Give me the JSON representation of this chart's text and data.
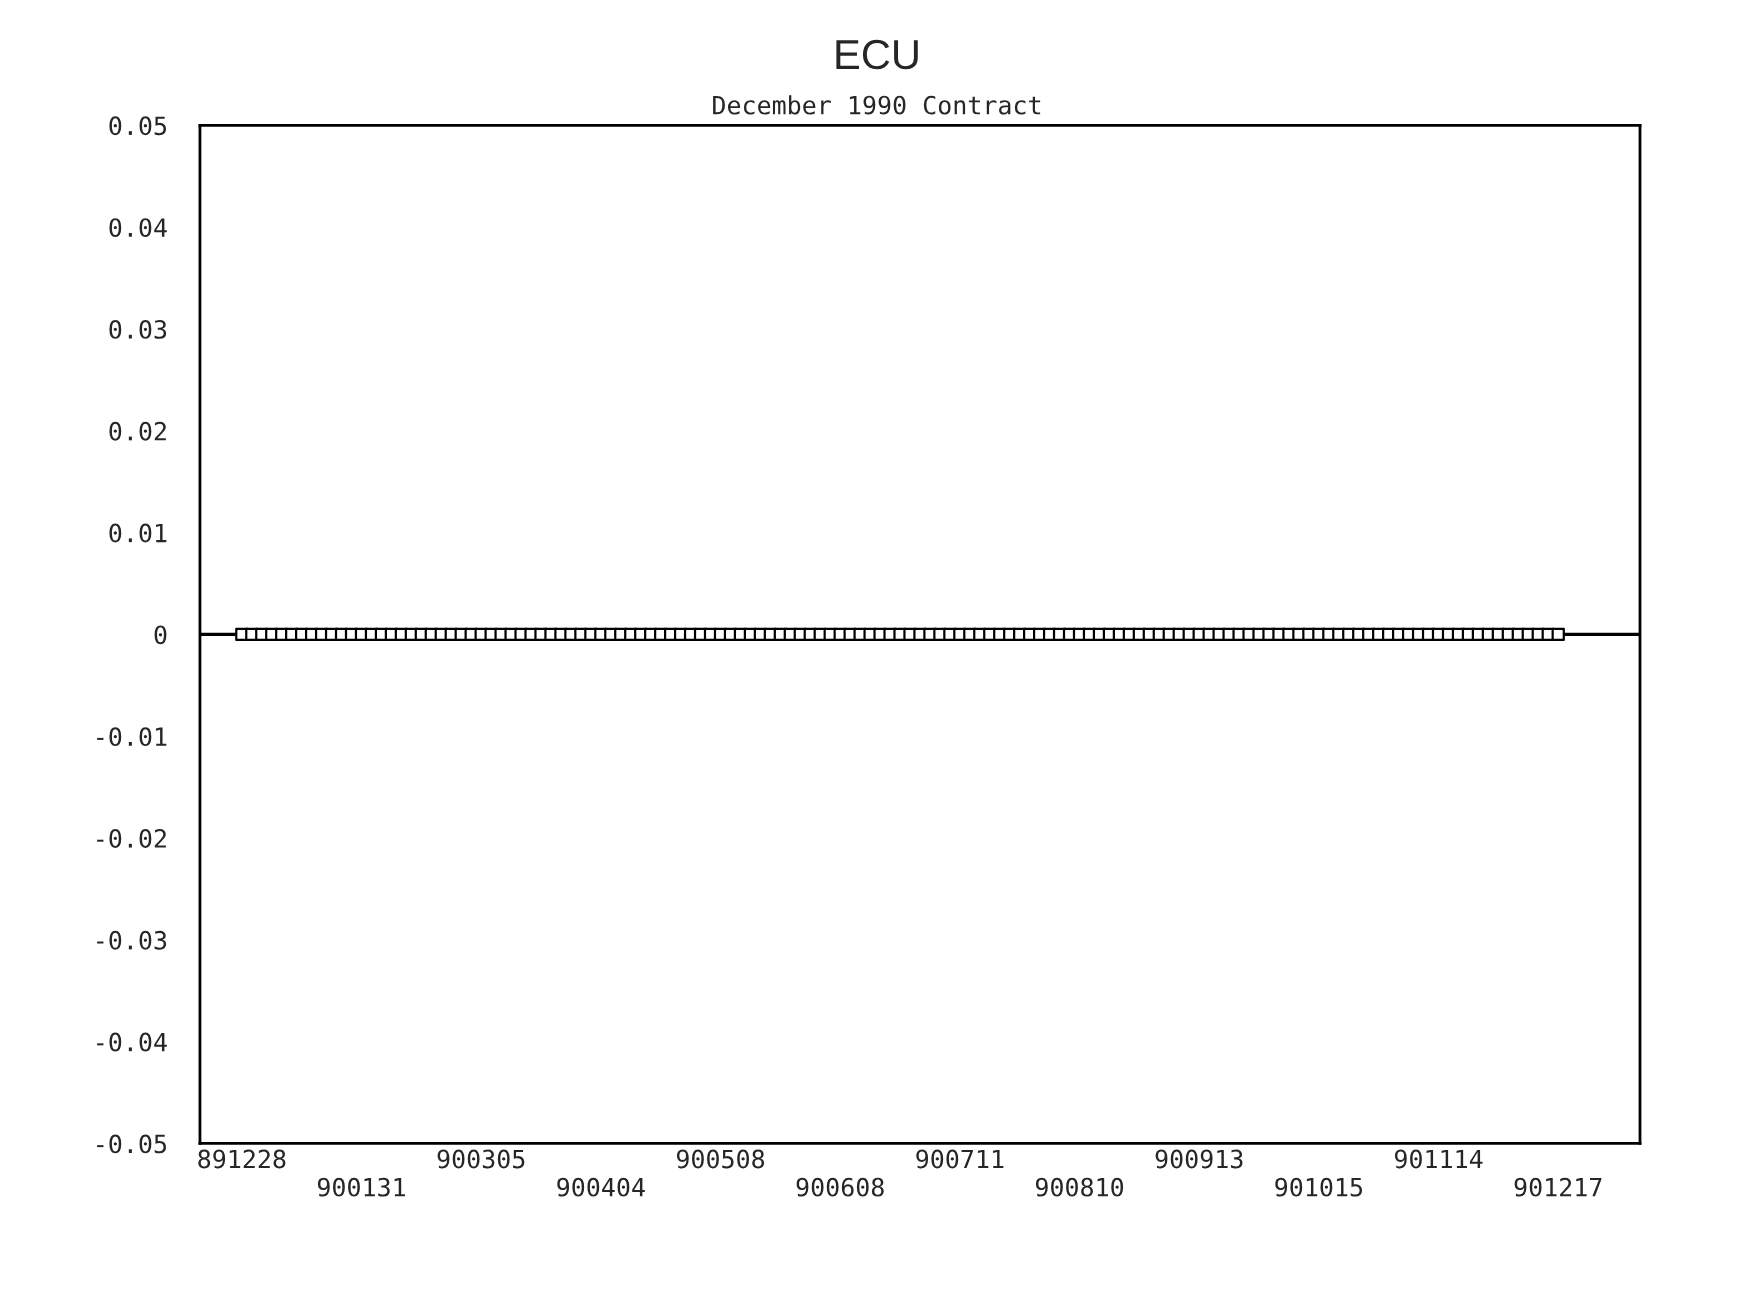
{
  "chart_data": {
    "type": "scatter",
    "title": "ECU",
    "subtitle": "December 1990 Contract",
    "categories": [
      "891228",
      null,
      null,
      null,
      null,
      null,
      null,
      null,
      null,
      null,
      null,
      null,
      "900131",
      null,
      null,
      null,
      null,
      null,
      null,
      null,
      null,
      null,
      null,
      null,
      "900305",
      null,
      null,
      null,
      null,
      null,
      null,
      null,
      null,
      null,
      null,
      null,
      "900404",
      null,
      null,
      null,
      null,
      null,
      null,
      null,
      null,
      null,
      null,
      null,
      "900508",
      null,
      null,
      null,
      null,
      null,
      null,
      null,
      null,
      null,
      null,
      null,
      "900608",
      null,
      null,
      null,
      null,
      null,
      null,
      null,
      null,
      null,
      null,
      null,
      "900711",
      null,
      null,
      null,
      null,
      null,
      null,
      null,
      null,
      null,
      null,
      null,
      "900810",
      null,
      null,
      null,
      null,
      null,
      null,
      null,
      null,
      null,
      null,
      null,
      "900913",
      null,
      null,
      null,
      null,
      null,
      null,
      null,
      null,
      null,
      null,
      null,
      "901015",
      null,
      null,
      null,
      null,
      null,
      null,
      null,
      null,
      null,
      null,
      null,
      "901114",
      null,
      null,
      null,
      null,
      null,
      null,
      null,
      null,
      null,
      null,
      null,
      "901217"
    ],
    "series": [
      {
        "color": "#000000",
        "values": [
          0,
          0,
          0,
          0,
          0,
          0,
          0,
          0,
          0,
          0,
          0,
          0,
          0,
          0,
          0,
          0,
          0,
          0,
          0,
          0,
          0,
          0,
          0,
          0,
          0,
          0,
          0,
          0,
          0,
          0,
          0,
          0,
          0,
          0,
          0,
          0,
          0,
          0,
          0,
          0,
          0,
          0,
          0,
          0,
          0,
          0,
          0,
          0,
          0,
          0,
          0,
          0,
          0,
          0,
          0,
          0,
          0,
          0,
          0,
          0,
          0,
          0,
          0,
          0,
          0,
          0,
          0,
          0,
          0,
          0,
          0,
          0,
          0,
          0,
          0,
          0,
          0,
          0,
          0,
          0,
          0,
          0,
          0,
          0,
          0,
          0,
          0,
          0,
          0,
          0,
          0,
          0,
          0,
          0,
          0,
          0,
          0,
          0,
          0,
          0,
          0,
          0,
          0,
          0,
          0,
          0,
          0,
          0,
          0,
          0,
          0,
          0,
          0,
          0,
          0,
          0,
          0,
          0,
          0,
          0,
          0,
          0,
          0,
          0,
          0,
          0,
          0,
          0,
          0,
          0,
          0,
          0,
          0
        ]
      }
    ],
    "marker": "square",
    "ylim": [
      -0.05,
      0.05
    ],
    "yticks": [
      -0.05,
      -0.04,
      -0.03,
      -0.02,
      -0.01,
      0,
      0.01,
      0.02,
      0.03,
      0.04,
      0.05
    ],
    "ref_lines": [
      {
        "axis": "y",
        "value": 0,
        "color": "#000000"
      }
    ],
    "grid": false,
    "legend": false
  }
}
